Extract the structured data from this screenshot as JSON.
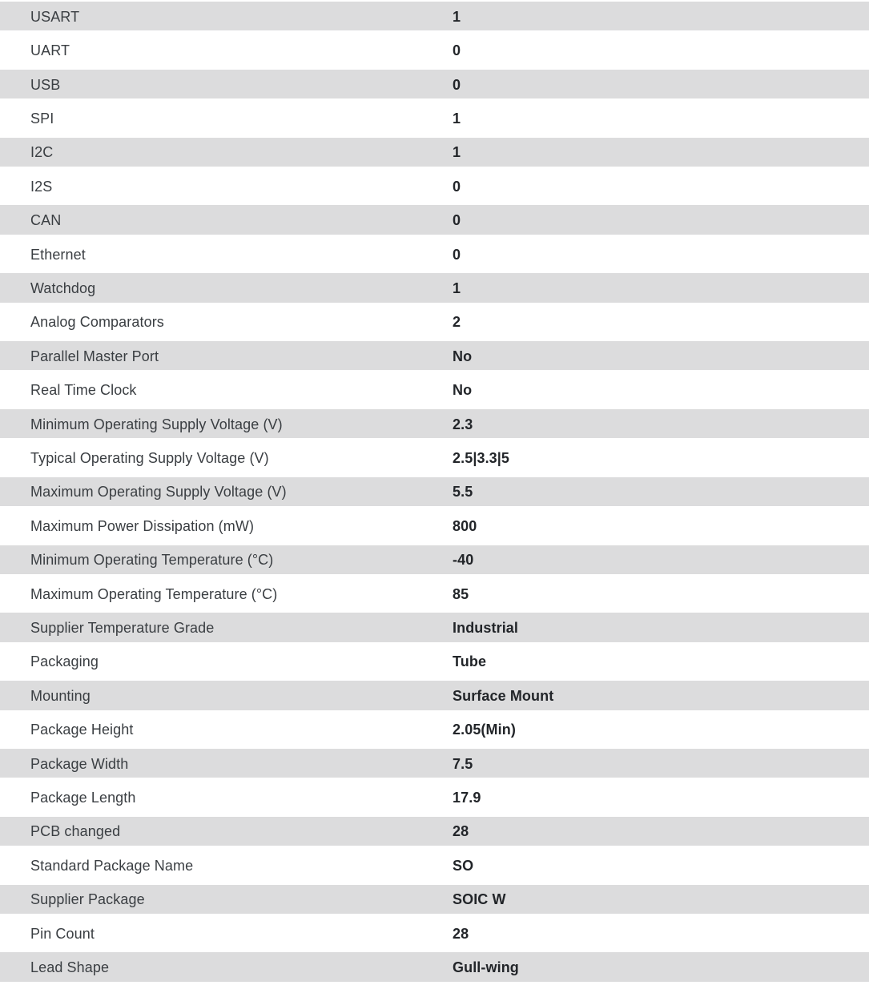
{
  "table": {
    "rows": [
      {
        "label": "USART",
        "value": "1"
      },
      {
        "label": "UART",
        "value": "0"
      },
      {
        "label": "USB",
        "value": "0"
      },
      {
        "label": "SPI",
        "value": "1"
      },
      {
        "label": "I2C",
        "value": "1"
      },
      {
        "label": "I2S",
        "value": "0"
      },
      {
        "label": "CAN",
        "value": "0"
      },
      {
        "label": "Ethernet",
        "value": "0"
      },
      {
        "label": "Watchdog",
        "value": "1"
      },
      {
        "label": "Analog Comparators",
        "value": "2"
      },
      {
        "label": "Parallel Master Port",
        "value": "No"
      },
      {
        "label": "Real Time Clock",
        "value": "No"
      },
      {
        "label": "Minimum Operating Supply Voltage (V)",
        "value": "2.3"
      },
      {
        "label": "Typical Operating Supply Voltage (V)",
        "value": "2.5|3.3|5"
      },
      {
        "label": "Maximum Operating Supply Voltage (V)",
        "value": "5.5"
      },
      {
        "label": "Maximum Power Dissipation (mW)",
        "value": "800"
      },
      {
        "label": "Minimum Operating Temperature (°C)",
        "value": "-40"
      },
      {
        "label": "Maximum Operating Temperature (°C)",
        "value": "85"
      },
      {
        "label": "Supplier Temperature Grade",
        "value": "Industrial"
      },
      {
        "label": "Packaging",
        "value": "Tube"
      },
      {
        "label": "Mounting",
        "value": "Surface Mount"
      },
      {
        "label": "Package Height",
        "value": "2.05(Min)"
      },
      {
        "label": "Package Width",
        "value": "7.5"
      },
      {
        "label": "Package Length",
        "value": "17.9"
      },
      {
        "label": "PCB changed",
        "value": "28"
      },
      {
        "label": "Standard Package Name",
        "value": "SO"
      },
      {
        "label": "Supplier Package",
        "value": "SOIC W"
      },
      {
        "label": "Pin Count",
        "value": "28"
      },
      {
        "label": "Lead Shape",
        "value": "Gull-wing"
      }
    ]
  },
  "colors": {
    "row_stripe": "#dcdcdd",
    "row_base": "#ffffff",
    "label_text": "#3a3e42",
    "value_text": "#222529"
  }
}
